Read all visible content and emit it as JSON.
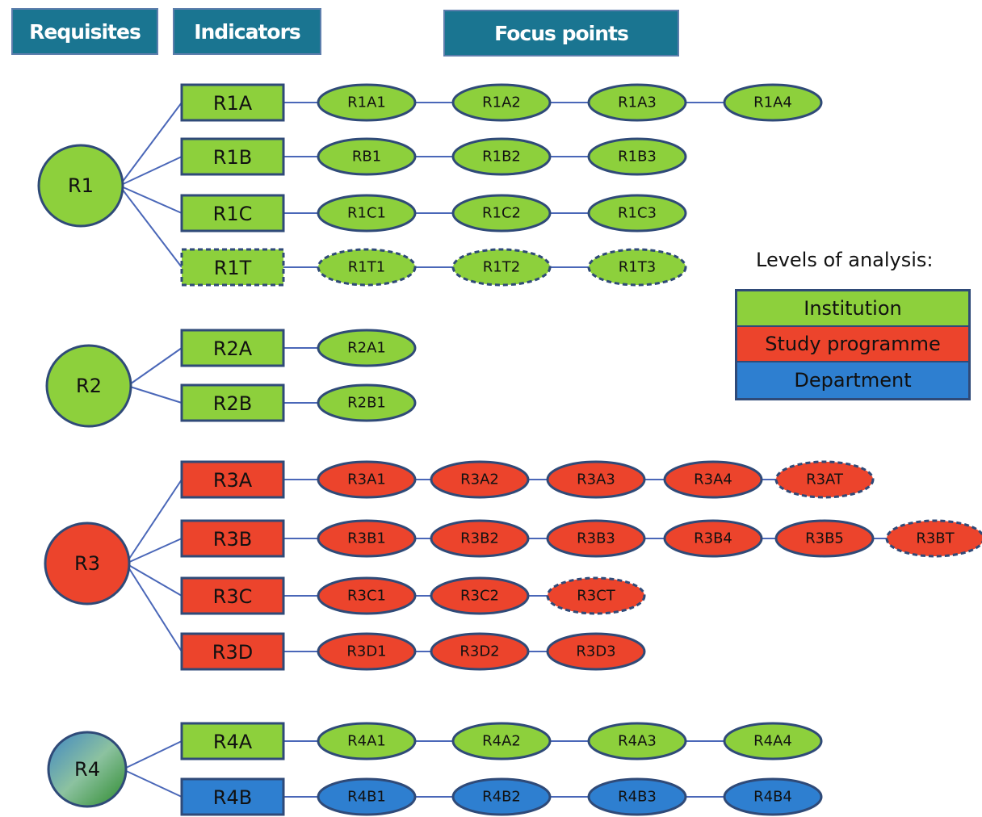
{
  "headers": {
    "requisites": "Requisites",
    "indicators": "Indicators",
    "focus_points": "Focus points"
  },
  "legend": {
    "title": "Levels of analysis:",
    "institution": "Institution",
    "study_programme": "Study programme",
    "department": "Department"
  },
  "colors": {
    "institution": "#8dd03c",
    "study_programme": "#ec442c",
    "department": "#2e7fd0",
    "outline": "#2f4a78",
    "connector": "#4a67b8",
    "header_fill": "#1a7591"
  },
  "requisites": [
    {
      "label": "R1",
      "level": "institution",
      "indicators": [
        {
          "label": "R1A",
          "level": "institution",
          "focus_points": [
            {
              "label": "R1A1"
            },
            {
              "label": "R1A2"
            },
            {
              "label": "R1A3"
            },
            {
              "label": "R1A4"
            }
          ]
        },
        {
          "label": "R1B",
          "level": "institution",
          "focus_points": [
            {
              "label": "RB1"
            },
            {
              "label": "R1B2"
            },
            {
              "label": "R1B3"
            }
          ]
        },
        {
          "label": "R1C",
          "level": "institution",
          "focus_points": [
            {
              "label": "R1C1"
            },
            {
              "label": "R1C2"
            },
            {
              "label": "R1C3"
            }
          ]
        },
        {
          "label": "R1T",
          "level": "institution",
          "dashed": true,
          "focus_points": [
            {
              "label": "R1T1",
              "dashed": true
            },
            {
              "label": "R1T2",
              "dashed": true
            },
            {
              "label": "R1T3",
              "dashed": true
            }
          ]
        }
      ]
    },
    {
      "label": "R2",
      "level": "institution",
      "indicators": [
        {
          "label": "R2A",
          "level": "institution",
          "focus_points": [
            {
              "label": "R2A1"
            }
          ]
        },
        {
          "label": "R2B",
          "level": "institution",
          "focus_points": [
            {
              "label": "R2B1"
            }
          ]
        }
      ]
    },
    {
      "label": "R3",
      "level": "study_programme",
      "indicators": [
        {
          "label": "R3A",
          "level": "study_programme",
          "focus_points": [
            {
              "label": "R3A1"
            },
            {
              "label": "R3A2"
            },
            {
              "label": "R3A3"
            },
            {
              "label": "R3A4"
            },
            {
              "label": "R3AT",
              "dashed": true
            }
          ]
        },
        {
          "label": "R3B",
          "level": "study_programme",
          "focus_points": [
            {
              "label": "R3B1"
            },
            {
              "label": "R3B2"
            },
            {
              "label": "R3B3"
            },
            {
              "label": "R3B4"
            },
            {
              "label": "R3B5"
            },
            {
              "label": "R3BT",
              "dashed": true
            }
          ]
        },
        {
          "label": "R3C",
          "level": "study_programme",
          "focus_points": [
            {
              "label": "R3C1"
            },
            {
              "label": "R3C2"
            },
            {
              "label": "R3CT",
              "dashed": true
            }
          ]
        },
        {
          "label": "R3D",
          "level": "study_programme",
          "focus_points": [
            {
              "label": "R3D1"
            },
            {
              "label": "R3D2"
            },
            {
              "label": "R3D3"
            }
          ]
        }
      ]
    },
    {
      "label": "R4",
      "level": "mixed",
      "indicators": [
        {
          "label": "R4A",
          "level": "institution",
          "focus_points": [
            {
              "label": "R4A1"
            },
            {
              "label": "R4A2"
            },
            {
              "label": "R4A3"
            },
            {
              "label": "R4A4"
            }
          ]
        },
        {
          "label": "R4B",
          "level": "department",
          "focus_points": [
            {
              "label": "R4B1"
            },
            {
              "label": "R4B2"
            },
            {
              "label": "R4B3"
            },
            {
              "label": "R4B4"
            }
          ]
        }
      ]
    }
  ]
}
